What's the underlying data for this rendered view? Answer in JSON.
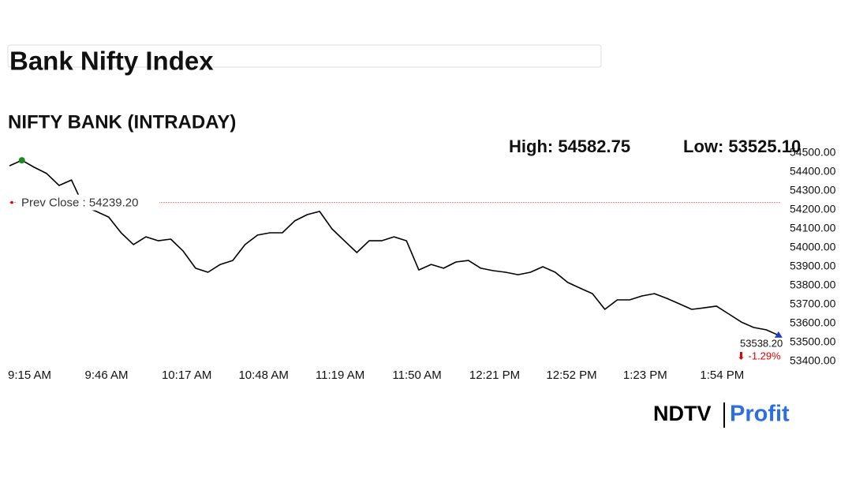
{
  "chart_data": {
    "type": "line",
    "title": "Bank Nifty Index",
    "subtitle": "NIFTY BANK (INTRADAY)",
    "high_label": "High: 54582.75",
    "low_label": "Low: 53525.10",
    "prev_close": {
      "value": 54239.2,
      "label": "Prev Close : 54239.20"
    },
    "last_label": "53538.20",
    "change_label": "⬇ -1.29%",
    "logo": [
      "NDTV",
      "Profit"
    ],
    "x": [
      "09:15",
      "09:20",
      "09:25",
      "09:30",
      "09:35",
      "09:40",
      "09:45",
      "09:50",
      "09:55",
      "10:00",
      "10:05",
      "10:10",
      "10:15",
      "10:20",
      "10:25",
      "10:30",
      "10:35",
      "10:40",
      "10:45",
      "10:50",
      "10:55",
      "11:00",
      "11:05",
      "11:10",
      "11:15",
      "11:20",
      "11:25",
      "11:30",
      "11:35",
      "11:40",
      "11:45",
      "11:50",
      "11:55",
      "12:00",
      "12:05",
      "12:10",
      "12:15",
      "12:20",
      "12:25",
      "12:30",
      "12:35",
      "12:40",
      "12:45",
      "12:50",
      "12:55",
      "13:00",
      "13:05",
      "13:10",
      "13:15",
      "13:20",
      "13:25",
      "13:30",
      "13:35",
      "13:40",
      "13:45",
      "13:50",
      "13:55",
      "14:00",
      "14:05",
      "14:10",
      "14:15",
      "14:20",
      "14:25"
    ],
    "series": [
      {
        "name": "NIFTY BANK",
        "color": "#000000",
        "values": [
          54433,
          54462,
          54425,
          54392,
          54329,
          54358,
          54217,
          54192,
          54162,
          54079,
          54017,
          54058,
          54037,
          54046,
          53983,
          53892,
          53871,
          53912,
          53933,
          54017,
          54067,
          54079,
          54079,
          54142,
          54175,
          54192,
          54100,
          54037,
          53975,
          54037,
          54037,
          54058,
          54037,
          53883,
          53912,
          53892,
          53925,
          53933,
          53892,
          53879,
          53871,
          53858,
          53871,
          53900,
          53871,
          53817,
          53787,
          53758,
          53675,
          53725,
          53725,
          53746,
          53758,
          53733,
          53704,
          53675,
          53683,
          53692,
          53650,
          53608,
          53579,
          53567,
          53538.2
        ]
      }
    ],
    "xlim": [
      "09:15",
      "14:26"
    ],
    "xticks": [
      {
        "value": "09:15",
        "label": "9:15 AM"
      },
      {
        "value": "09:46",
        "label": "9:46 AM"
      },
      {
        "value": "10:17",
        "label": "10:17 AM"
      },
      {
        "value": "10:48",
        "label": "10:48 AM"
      },
      {
        "value": "11:19",
        "label": "11:19 AM"
      },
      {
        "value": "11:50",
        "label": "11:50 AM"
      },
      {
        "value": "12:21",
        "label": "12:21 PM"
      },
      {
        "value": "12:52",
        "label": "12:52 PM"
      },
      {
        "value": "13:23",
        "label": "1:23 PM"
      },
      {
        "value": "13:54",
        "label": "1:54 PM"
      }
    ],
    "ylim": [
      53400,
      54500
    ],
    "yticks": [
      {
        "value": 54500,
        "label": "54500.00"
      },
      {
        "value": 54400,
        "label": "54400.00"
      },
      {
        "value": 54300,
        "label": "54300.00"
      },
      {
        "value": 54200,
        "label": "54200.00"
      },
      {
        "value": 54100,
        "label": "54100.00"
      },
      {
        "value": 54000,
        "label": "54000.00"
      },
      {
        "value": 53900,
        "label": "53900.00"
      },
      {
        "value": 53800,
        "label": "53800.00"
      },
      {
        "value": 53700,
        "label": "53700.00"
      },
      {
        "value": 53600,
        "label": "53600.00"
      },
      {
        "value": 53500,
        "label": "53500.00"
      },
      {
        "value": 53400,
        "label": "53400.00"
      }
    ],
    "grid": false
  }
}
